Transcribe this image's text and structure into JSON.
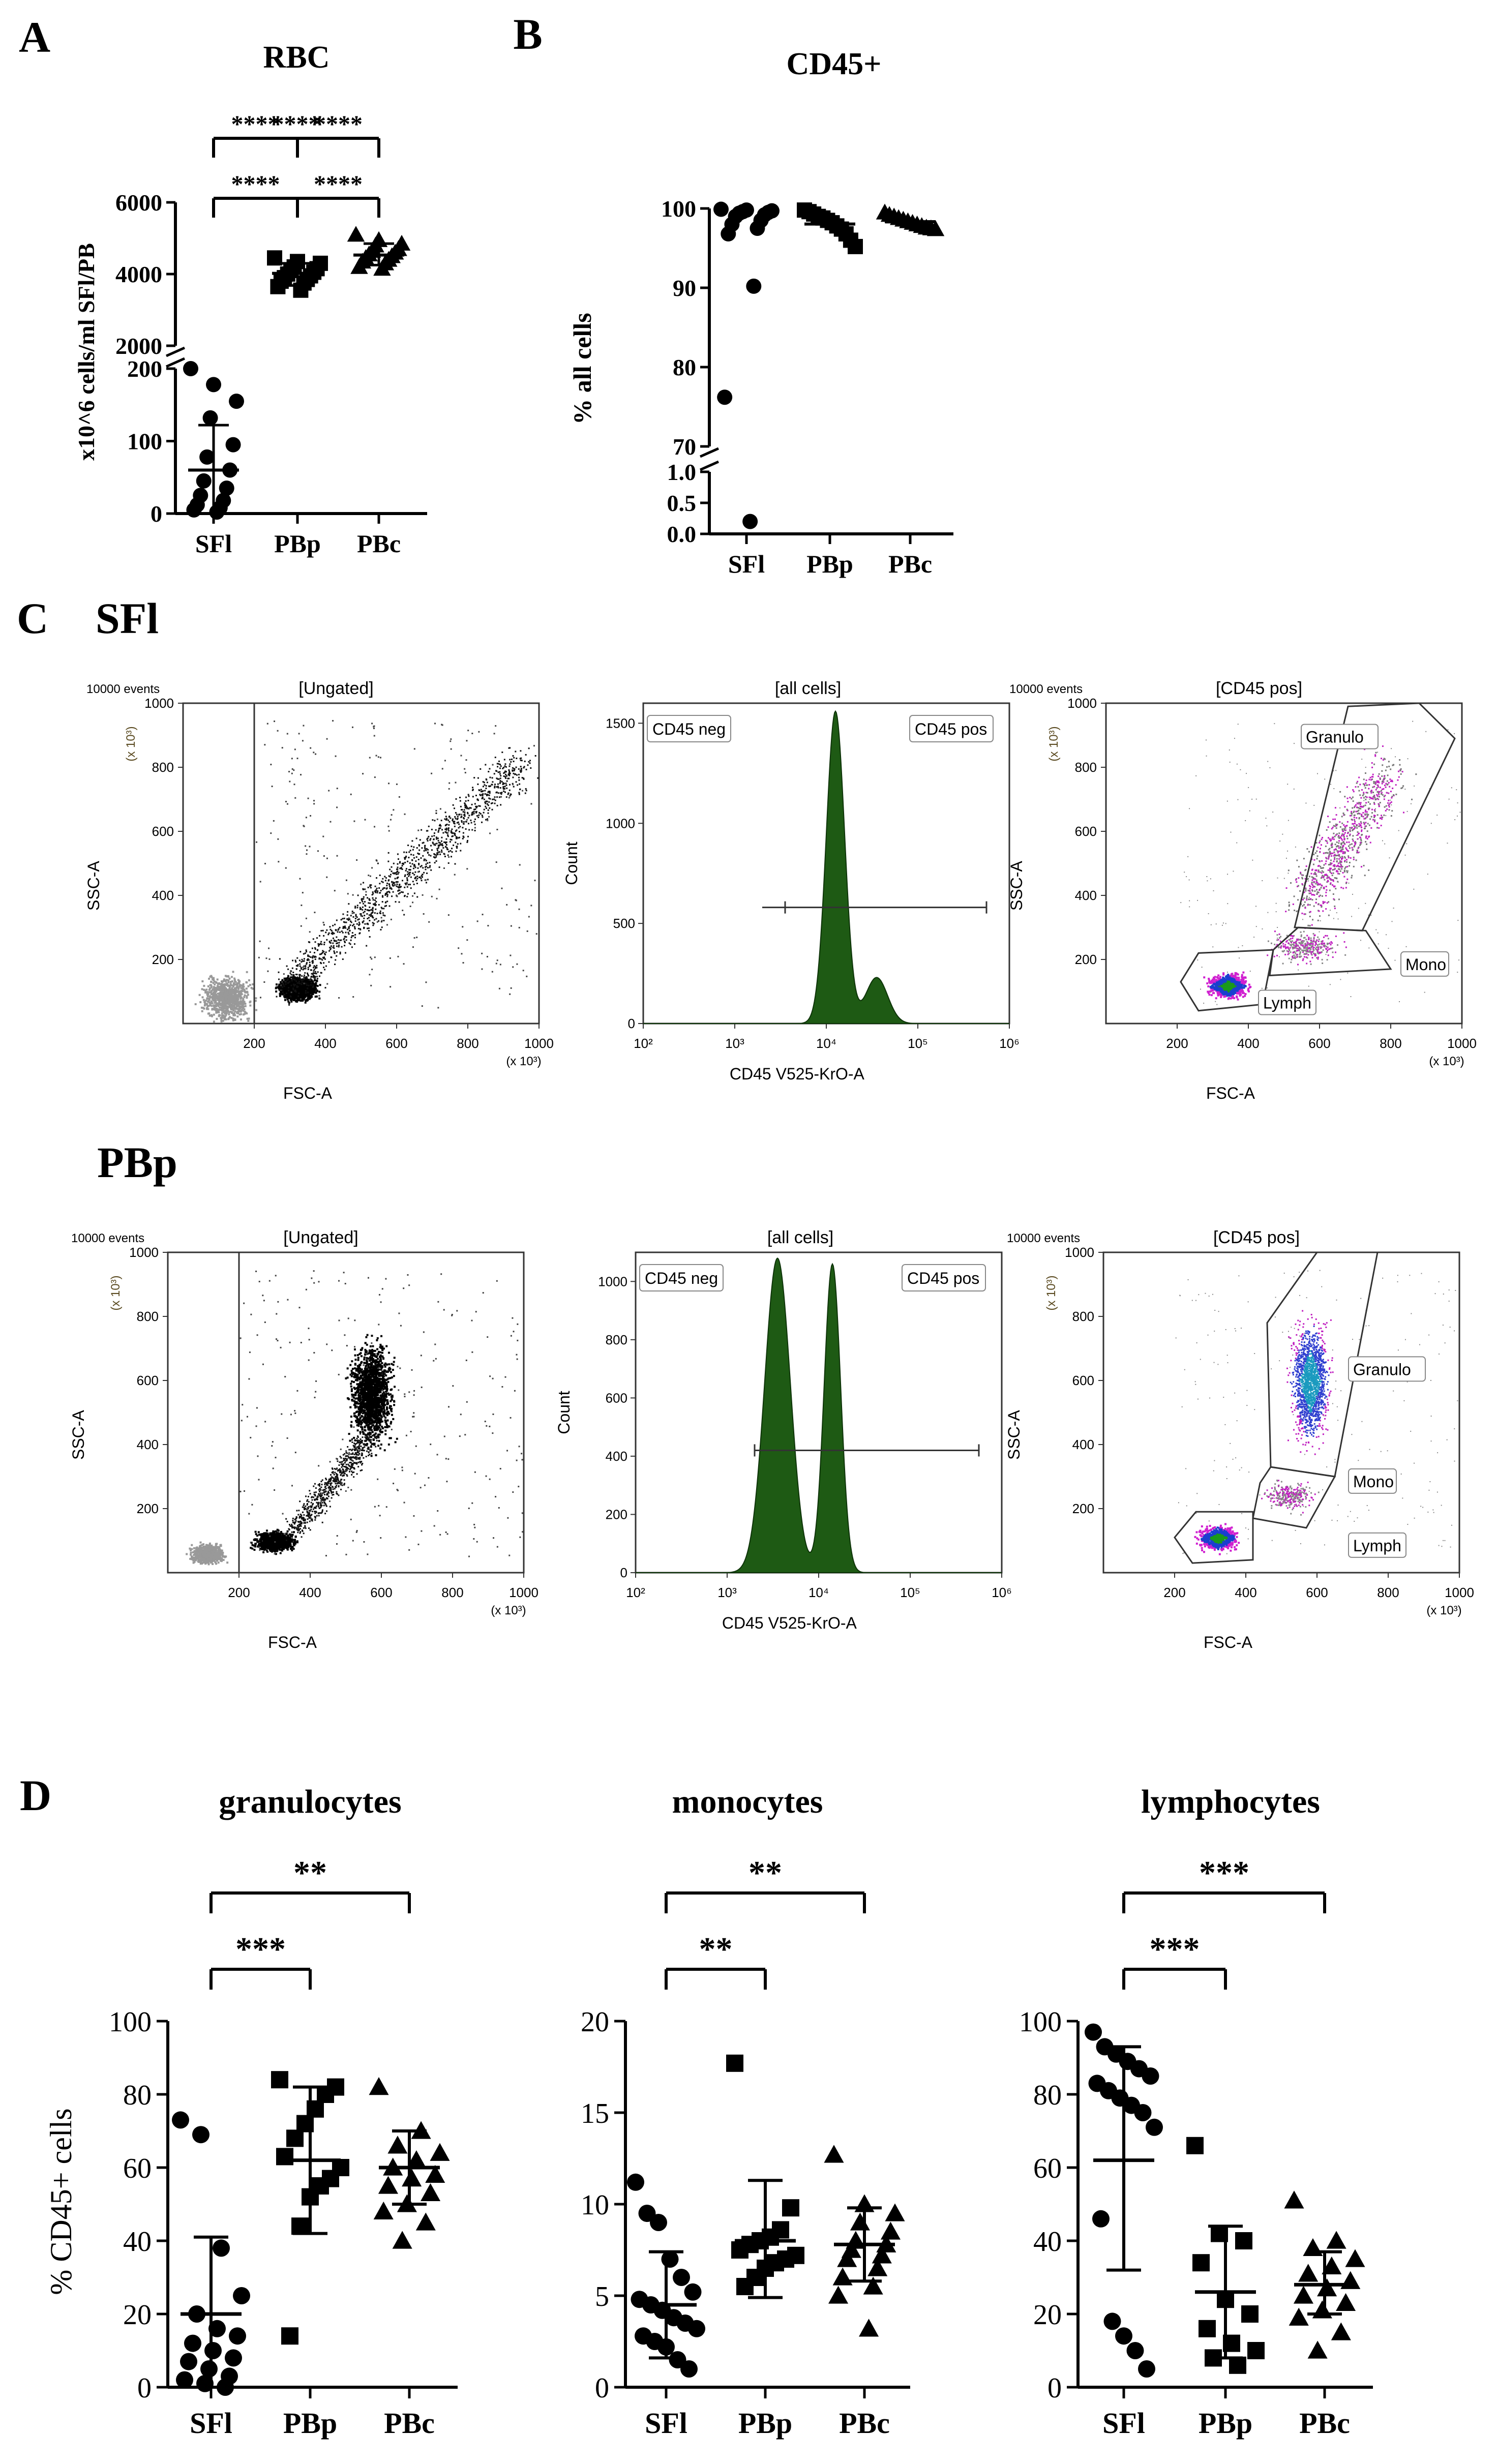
{
  "panels": {
    "A": {
      "letter": "A",
      "title": "RBC",
      "ylabel": "x10^6 cells/ml SFl/PB",
      "categories": [
        "SFl",
        "PBp",
        "PBc"
      ],
      "upper_ticks": [
        "2000",
        "4000",
        "6000"
      ],
      "lower_ticks": [
        "0",
        "100",
        "200"
      ],
      "significance": [
        {
          "from": 0,
          "to": 2,
          "label": "****"
        },
        {
          "from": 0,
          "to": 1,
          "label": "****"
        },
        {
          "from": 1,
          "to": 2,
          "label": "****"
        }
      ]
    },
    "B": {
      "letter": "B",
      "title": "CD45+",
      "ylabel": "% all cells",
      "categories": [
        "SFl",
        "PBp",
        "PBc"
      ],
      "upper_ticks": [
        "70",
        "80",
        "90",
        "100"
      ],
      "lower_ticks": [
        "0.0",
        "0.5",
        "1.0"
      ]
    },
    "C": {
      "letter": "C",
      "rows": [
        {
          "name": "SFl",
          "scatter1": {
            "events": "10000 events",
            "title": "[Ungated]",
            "xlabel": "FSC-A",
            "ylabel": "SSC-A",
            "unit": "(x 10³)"
          },
          "histogram": {
            "title": "[all cells]",
            "xlabel": "CD45 V525-KrO-A",
            "ylabel": "Count",
            "neg": "CD45 neg",
            "pos": "CD45 pos",
            "yticks": [
              "0",
              "500",
              "1000",
              "1500"
            ]
          },
          "scatter2": {
            "events": "10000 events",
            "title": "[CD45 pos]",
            "xlabel": "FSC-A",
            "ylabel": "SSC-A",
            "unit": "(x 10³)",
            "gates": [
              "Granulo",
              "Mono",
              "Lymph"
            ]
          }
        },
        {
          "name": "PBp",
          "scatter1": {
            "events": "10000 events",
            "title": "[Ungated]",
            "xlabel": "FSC-A",
            "ylabel": "SSC-A",
            "unit": "(x 10³)"
          },
          "histogram": {
            "title": "[all cells]",
            "xlabel": "CD45 V525-KrO-A",
            "ylabel": "Count",
            "neg": "CD45 neg",
            "pos": "CD45 pos",
            "yticks": [
              "0",
              "200",
              "400",
              "600",
              "800",
              "1000"
            ]
          },
          "scatter2": {
            "events": "10000 events",
            "title": "[CD45 pos]",
            "xlabel": "FSC-A",
            "ylabel": "SSC-A",
            "unit": "(x 10³)",
            "gates": [
              "Granulo",
              "Mono",
              "Lymph"
            ]
          }
        }
      ],
      "flow_ticks": [
        "200",
        "400",
        "600",
        "800",
        "1000"
      ],
      "hist_xticks": [
        "10²",
        "10³",
        "10⁴",
        "10⁵",
        "10⁶"
      ]
    },
    "D": {
      "letter": "D",
      "ylabel": "% CD45+ cells",
      "categories": [
        "SFl",
        "PBp",
        "PBc"
      ]
    }
  },
  "chart_data": [
    {
      "type": "scatter",
      "title": "RBC",
      "ylabel": "x10^6 cells/ml SFl/PB",
      "categories": [
        "SFl",
        "PBp",
        "PBc"
      ],
      "y_scale": "segmented (lower 0-200, upper 2000-6000)",
      "ylim_lower": [
        0,
        200
      ],
      "ylim_upper": [
        2000,
        6000
      ],
      "series": [
        {
          "category": "SFl",
          "marker": "circle",
          "mean": 60,
          "sd_low": 0,
          "sd_high": 122,
          "values": [
            200,
            178,
            155,
            132,
            95,
            78,
            60,
            45,
            35,
            25,
            18,
            12,
            8,
            5,
            2
          ]
        },
        {
          "category": "PBp",
          "marker": "square",
          "mean": 4020,
          "sd_low": 3680,
          "sd_high": 4300,
          "values": [
            4450,
            4350,
            4300,
            4200,
            4150,
            4100,
            4050,
            4000,
            3950,
            3900,
            3850,
            3800,
            3750,
            3650,
            3550
          ]
        },
        {
          "category": "PBc",
          "marker": "triangle",
          "mean": 4530,
          "sd_low": 4250,
          "sd_high": 4850,
          "values": [
            5100,
            4950,
            4850,
            4800,
            4700,
            4650,
            4600,
            4550,
            4500,
            4450,
            4400,
            4350,
            4300,
            4200,
            4150
          ]
        }
      ]
    },
    {
      "type": "scatter",
      "title": "CD45+",
      "ylabel": "% all cells",
      "categories": [
        "SFl",
        "PBp",
        "PBc"
      ],
      "y_scale": "segmented (lower 0-1, upper 70-100)",
      "ylim_lower": [
        0,
        1
      ],
      "ylim_upper": [
        70,
        100
      ],
      "series": [
        {
          "category": "SFl",
          "marker": "circle",
          "values": [
            99.9,
            99.8,
            99.7,
            99.6,
            99.5,
            99.4,
            99.2,
            99.0,
            98.5,
            98.0,
            97.5,
            96.8,
            90.2,
            76.2,
            0.2
          ]
        },
        {
          "category": "PBp",
          "marker": "square",
          "values": [
            99.8,
            99.6,
            99.3,
            99.0,
            98.8,
            98.5,
            98.2,
            97.8,
            97.4,
            96.8,
            96.0,
            95.2
          ]
        },
        {
          "category": "PBc",
          "marker": "triangle",
          "values": [
            99.5,
            99.2,
            99.0,
            98.8,
            98.6,
            98.4,
            98.2,
            98.0,
            97.8,
            97.6,
            97.5,
            97.4
          ]
        }
      ]
    },
    {
      "type": "scatter",
      "title": "granulocytes",
      "ylabel": "% CD45+ cells",
      "categories": [
        "SFl",
        "PBp",
        "PBc"
      ],
      "ylim": [
        0,
        100
      ],
      "yticks": [
        0,
        20,
        40,
        60,
        80,
        100
      ],
      "significance": [
        {
          "from": 0,
          "to": 2,
          "label": "**"
        },
        {
          "from": 0,
          "to": 1,
          "label": "***"
        }
      ],
      "series": [
        {
          "category": "SFl",
          "marker": "circle",
          "mean": 20,
          "sd_low": 0,
          "sd_high": 41,
          "values": [
            73,
            69,
            38,
            25,
            20,
            16,
            14,
            12,
            10,
            8,
            7,
            5,
            3,
            2,
            1,
            0
          ]
        },
        {
          "category": "PBp",
          "marker": "square",
          "mean": 62,
          "sd_low": 42,
          "sd_high": 82,
          "values": [
            84,
            82,
            80,
            76,
            72,
            68,
            63,
            60,
            57,
            55,
            52,
            44,
            14
          ]
        },
        {
          "category": "PBc",
          "marker": "triangle",
          "mean": 60,
          "sd_low": 50,
          "sd_high": 70,
          "values": [
            82,
            70,
            66,
            64,
            62,
            60,
            58,
            57,
            55,
            53,
            50,
            48,
            45,
            40
          ]
        }
      ]
    },
    {
      "type": "scatter",
      "title": "monocytes",
      "ylabel": "",
      "categories": [
        "SFl",
        "PBp",
        "PBc"
      ],
      "ylim": [
        0,
        20
      ],
      "yticks": [
        0,
        5,
        10,
        15,
        20
      ],
      "significance": [
        {
          "from": 0,
          "to": 2,
          "label": "**"
        },
        {
          "from": 0,
          "to": 1,
          "label": "**"
        }
      ],
      "series": [
        {
          "category": "SFl",
          "marker": "circle",
          "mean": 4.5,
          "sd_low": 1.6,
          "sd_high": 7.4,
          "values": [
            11.2,
            9.5,
            9.0,
            7.0,
            6.0,
            5.2,
            4.8,
            4.5,
            4.2,
            3.8,
            3.5,
            3.2,
            2.8,
            2.5,
            2.2,
            1.5,
            1.0
          ]
        },
        {
          "category": "PBp",
          "marker": "square",
          "mean": 8.0,
          "sd_low": 4.9,
          "sd_high": 11.3,
          "values": [
            17.7,
            9.8,
            8.6,
            8.2,
            8.0,
            7.8,
            7.5,
            7.2,
            7.0,
            6.8,
            6.5,
            6.0,
            5.5
          ]
        },
        {
          "category": "PBc",
          "marker": "triangle",
          "mean": 7.8,
          "sd_low": 5.8,
          "sd_high": 9.8,
          "values": [
            12.7,
            10.0,
            9.5,
            9.0,
            8.5,
            8.0,
            7.8,
            7.5,
            7.2,
            7.0,
            6.5,
            6.0,
            5.5,
            5.0,
            3.2
          ]
        }
      ]
    },
    {
      "type": "scatter",
      "title": "lymphocytes",
      "ylabel": "",
      "categories": [
        "SFl",
        "PBp",
        "PBc"
      ],
      "ylim": [
        0,
        100
      ],
      "yticks": [
        0,
        20,
        40,
        60,
        80,
        100
      ],
      "significance": [
        {
          "from": 0,
          "to": 2,
          "label": "***"
        },
        {
          "from": 0,
          "to": 1,
          "label": "***"
        }
      ],
      "series": [
        {
          "category": "SFl",
          "marker": "circle",
          "mean": 62,
          "sd_low": 32,
          "sd_high": 93,
          "values": [
            97,
            93,
            91,
            89,
            87,
            85,
            83,
            81,
            79,
            77,
            75,
            71,
            46,
            18,
            14,
            10,
            5
          ]
        },
        {
          "category": "PBp",
          "marker": "square",
          "mean": 26,
          "sd_low": 8,
          "sd_high": 44,
          "values": [
            66,
            42,
            40,
            34,
            24,
            20,
            16,
            12,
            10,
            8,
            6
          ]
        },
        {
          "category": "PBc",
          "marker": "triangle",
          "mean": 28,
          "sd_low": 20,
          "sd_high": 37,
          "values": [
            51,
            40,
            38,
            35,
            33,
            31,
            29,
            27,
            25,
            23,
            21,
            19,
            15,
            10
          ]
        }
      ]
    }
  ]
}
